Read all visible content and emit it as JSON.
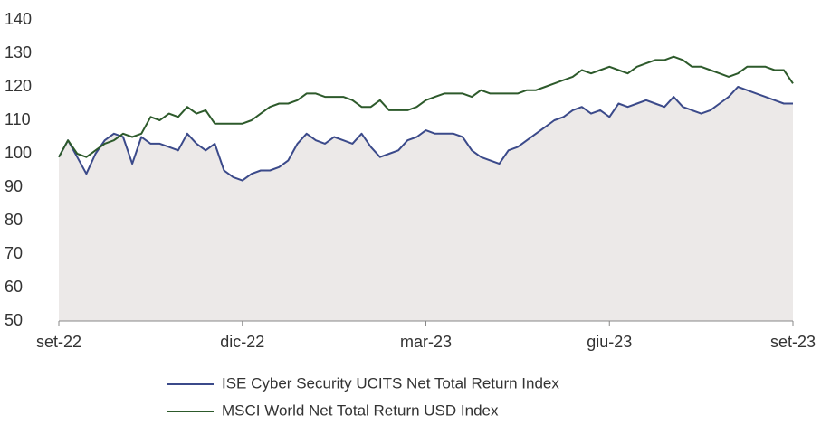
{
  "chart_data": {
    "type": "line",
    "categories": [
      "set-22",
      null,
      null,
      null,
      null,
      null,
      null,
      null,
      null,
      null,
      null,
      null,
      null,
      null,
      null,
      null,
      null,
      null,
      null,
      null,
      "dic-22",
      null,
      null,
      null,
      null,
      null,
      null,
      null,
      null,
      null,
      null,
      null,
      null,
      null,
      null,
      null,
      null,
      null,
      null,
      null,
      "mar-23",
      null,
      null,
      null,
      null,
      null,
      null,
      null,
      null,
      null,
      null,
      null,
      null,
      null,
      null,
      null,
      null,
      null,
      null,
      null,
      "giu-23",
      null,
      null,
      null,
      null,
      null,
      null,
      null,
      null,
      null,
      null,
      null,
      null,
      null,
      null,
      null,
      null,
      null,
      null,
      null,
      "set-23"
    ],
    "series": [
      {
        "name": "ISE Cyber Security UCITS Net Total Return Index",
        "color": "#3b4a8a",
        "fill": "#ece9e8",
        "values": [
          99,
          104,
          99,
          94,
          100,
          104,
          106,
          105,
          97,
          105,
          103,
          103,
          102,
          101,
          106,
          103,
          101,
          103,
          95,
          93,
          92,
          94,
          95,
          95,
          96,
          98,
          103,
          106,
          104,
          103,
          105,
          104,
          103,
          106,
          102,
          99,
          100,
          101,
          104,
          105,
          107,
          106,
          106,
          106,
          105,
          101,
          99,
          98,
          97,
          101,
          102,
          104,
          106,
          108,
          110,
          111,
          113,
          114,
          112,
          113,
          111,
          115,
          114,
          115,
          116,
          115,
          114,
          117,
          114,
          113,
          112,
          113,
          115,
          117,
          120,
          119,
          118,
          117,
          116,
          115,
          115
        ]
      },
      {
        "name": "MSCI World Net Total Return USD Index",
        "color": "#2d5a2b",
        "values": [
          99,
          104,
          100,
          99,
          101,
          103,
          104,
          106,
          105,
          106,
          111,
          110,
          112,
          111,
          114,
          112,
          113,
          109,
          109,
          109,
          109,
          110,
          112,
          114,
          115,
          115,
          116,
          118,
          118,
          117,
          117,
          117,
          116,
          114,
          114,
          116,
          113,
          113,
          113,
          114,
          116,
          117,
          118,
          118,
          118,
          117,
          119,
          118,
          118,
          118,
          118,
          119,
          119,
          120,
          121,
          122,
          123,
          125,
          124,
          125,
          126,
          125,
          124,
          126,
          127,
          128,
          128,
          129,
          128,
          126,
          126,
          125,
          124,
          123,
          124,
          126,
          126,
          126,
          125,
          125,
          121
        ]
      }
    ],
    "ylim": [
      50,
      140
    ],
    "yticks": [
      50,
      60,
      70,
      80,
      90,
      100,
      110,
      120,
      130,
      140
    ]
  }
}
